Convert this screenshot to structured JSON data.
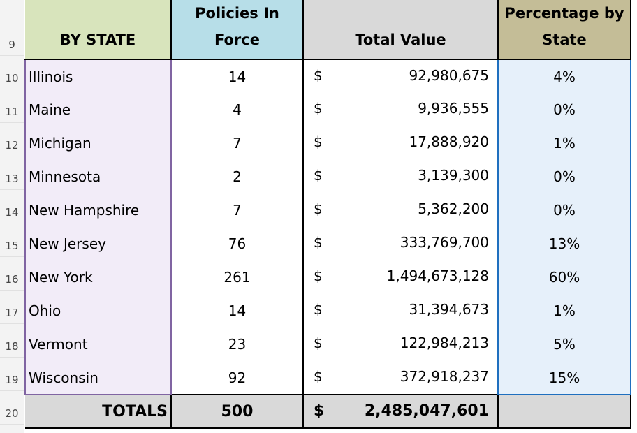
{
  "row_numbers": [
    "9",
    "10",
    "11",
    "12",
    "13",
    "14",
    "15",
    "16",
    "17",
    "18",
    "19",
    "20"
  ],
  "headers": {
    "state": "BY STATE",
    "policies_line1": "Policies In",
    "policies_line2": "Force",
    "value": "Total Value",
    "pct_line1": "Percentage by",
    "pct_line2": "State"
  },
  "currency_symbol": "$",
  "rows": [
    {
      "state": "Illinois",
      "policies": "14",
      "value": "92,980,675",
      "pct": "4%"
    },
    {
      "state": "Maine",
      "policies": "4",
      "value": "9,936,555",
      "pct": "0%"
    },
    {
      "state": "Michigan",
      "policies": "7",
      "value": "17,888,920",
      "pct": "1%"
    },
    {
      "state": "Minnesota",
      "policies": "2",
      "value": "3,139,300",
      "pct": "0%"
    },
    {
      "state": "New Hampshire",
      "policies": "7",
      "value": "5,362,200",
      "pct": "0%"
    },
    {
      "state": "New Jersey",
      "policies": "76",
      "value": "333,769,700",
      "pct": "13%"
    },
    {
      "state": "New York",
      "policies": "261",
      "value": "1,494,673,128",
      "pct": "60%"
    },
    {
      "state": "Ohio",
      "policies": "14",
      "value": "31,394,673",
      "pct": "1%"
    },
    {
      "state": "Vermont",
      "policies": "23",
      "value": "122,984,213",
      "pct": "5%"
    },
    {
      "state": "Wisconsin",
      "policies": "92",
      "value": "372,918,237",
      "pct": "15%"
    }
  ],
  "totals": {
    "label": "TOTALS",
    "policies": "500",
    "value": "2,485,047,601"
  }
}
